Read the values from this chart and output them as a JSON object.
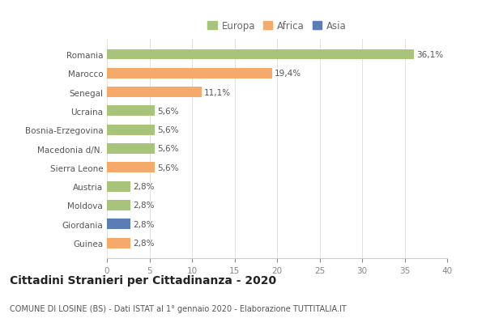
{
  "categories": [
    "Guinea",
    "Giordania",
    "Moldova",
    "Austria",
    "Sierra Leone",
    "Macedonia d/N.",
    "Bosnia-Erzegovina",
    "Ucraina",
    "Senegal",
    "Marocco",
    "Romania"
  ],
  "values": [
    2.8,
    2.8,
    2.8,
    2.8,
    5.6,
    5.6,
    5.6,
    5.6,
    11.1,
    19.4,
    36.1
  ],
  "labels": [
    "2,8%",
    "2,8%",
    "2,8%",
    "2,8%",
    "5,6%",
    "5,6%",
    "5,6%",
    "5,6%",
    "11,1%",
    "19,4%",
    "36,1%"
  ],
  "colors": [
    "#f5a96a",
    "#5b7db5",
    "#a8c47a",
    "#a8c47a",
    "#f5a96a",
    "#a8c47a",
    "#a8c47a",
    "#a8c47a",
    "#f5a96a",
    "#f5a96a",
    "#a8c47a"
  ],
  "legend_labels": [
    "Europa",
    "Africa",
    "Asia"
  ],
  "legend_colors": [
    "#a8c47a",
    "#f5a96a",
    "#5b7db5"
  ],
  "title": "Cittadini Stranieri per Cittadinanza - 2020",
  "subtitle": "COMUNE DI LOSINE (BS) - Dati ISTAT al 1° gennaio 2020 - Elaborazione TUTTITALIA.IT",
  "xlim": [
    0,
    40
  ],
  "xticks": [
    0,
    5,
    10,
    15,
    20,
    25,
    30,
    35,
    40
  ],
  "background_color": "#ffffff",
  "bar_height": 0.55,
  "label_fontsize": 7.5,
  "tick_fontsize": 7.5,
  "title_fontsize": 10,
  "subtitle_fontsize": 7
}
